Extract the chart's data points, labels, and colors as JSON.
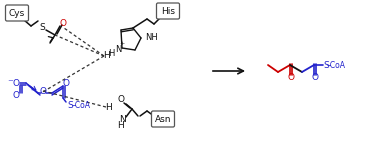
{
  "bg_color": "#ffffff",
  "blue": "#2222cc",
  "red": "#cc0000",
  "black": "#111111",
  "gray": "#555555",
  "figsize": [
    3.77,
    1.43
  ],
  "dpi": 100,
  "label_cys": "Cys",
  "label_his": "His",
  "label_asn": "Asn"
}
